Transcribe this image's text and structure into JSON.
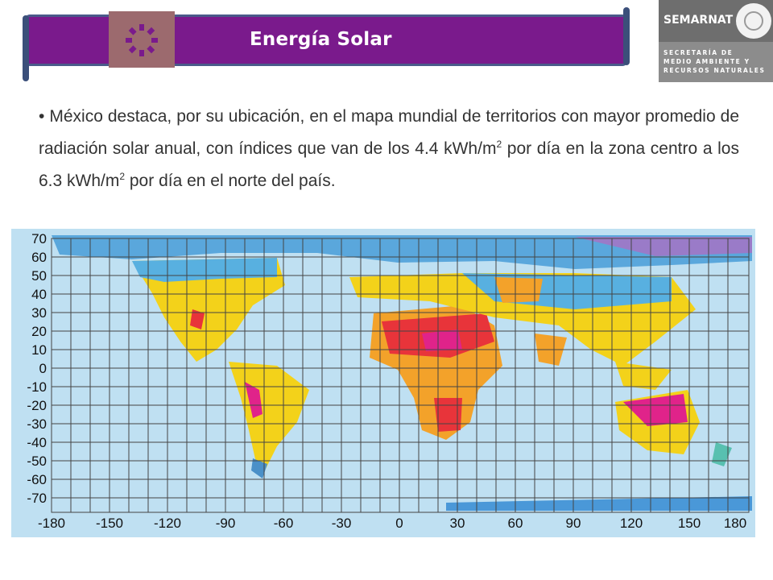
{
  "header": {
    "title": "Energía Solar",
    "banner_color": "#7a1a8c",
    "icon": "sun-icon"
  },
  "logo": {
    "name": "SEMARNAT",
    "subtitle_lines": [
      "SECRETARÍA DE",
      "MEDIO AMBIENTE Y",
      "RECURSOS NATURALES"
    ],
    "seal_icon": "mexico-coat-of-arms-icon"
  },
  "body": {
    "bullet": "•",
    "line1": "México destaca, por su ubicación, en el mapa mundial de territorios con mayor promedio de radiación solar anual, con índices que van de los 4.4 kWh/m",
    "sup1": "2",
    "line2": " por día en la zona centro a los 6.3 kWh/m",
    "sup2": "2",
    "line3": " por día en el norte del país."
  },
  "map": {
    "y_labels": [
      "70",
      "60",
      "50",
      "40",
      "30",
      "20",
      "10",
      "0",
      "-10",
      "-20",
      "-30",
      "-40",
      "-50",
      "-60",
      "-70"
    ],
    "x_labels": [
      "-180",
      "-150",
      "-120",
      "-90",
      "-60",
      "-30",
      "0",
      "30",
      "60",
      "90",
      "120",
      "150",
      "180"
    ],
    "ocean_color": "#bfe0f2"
  }
}
